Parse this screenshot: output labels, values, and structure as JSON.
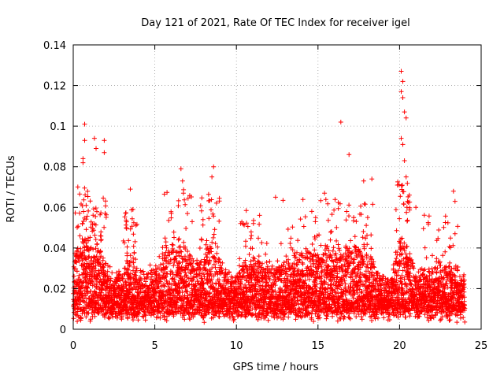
{
  "colors": {
    "marker": "#ff0000",
    "grid": "#a0a0a0",
    "axis": "#000000",
    "background": "#ffffff"
  },
  "chart_data": {
    "type": "scatter",
    "title": "Day 121 of 2021, Rate Of TEC Index for receiver igel",
    "xlabel": "GPS time / hours",
    "ylabel": "ROTI / TECUs",
    "xlim": [
      0,
      25
    ],
    "ylim": [
      0,
      0.14
    ],
    "x_ticks": [
      0,
      5,
      10,
      15,
      20,
      25
    ],
    "x_tick_labels": [
      "0",
      "5",
      "10",
      "15",
      "20",
      "25"
    ],
    "y_ticks": [
      0,
      0.02,
      0.04,
      0.06,
      0.08,
      0.1,
      0.12,
      0.14
    ],
    "y_tick_labels": [
      "0",
      "0.02",
      "0.04",
      "0.06",
      "0.08",
      "0.1",
      "0.12",
      "0.14"
    ],
    "grid": true,
    "marker": "+",
    "series": [
      {
        "name": "ROTI",
        "x_range": [
          0,
          24
        ],
        "notable_points": [
          {
            "x": 0.7,
            "y": 0.101
          },
          {
            "x": 0.7,
            "y": 0.093
          },
          {
            "x": 0.6,
            "y": 0.084
          },
          {
            "x": 0.6,
            "y": 0.082
          },
          {
            "x": 1.3,
            "y": 0.094
          },
          {
            "x": 1.4,
            "y": 0.089
          },
          {
            "x": 1.9,
            "y": 0.093
          },
          {
            "x": 1.9,
            "y": 0.087
          },
          {
            "x": 3.5,
            "y": 0.069
          },
          {
            "x": 6.6,
            "y": 0.079
          },
          {
            "x": 6.7,
            "y": 0.073
          },
          {
            "x": 8.6,
            "y": 0.08
          },
          {
            "x": 8.5,
            "y": 0.075
          },
          {
            "x": 12.4,
            "y": 0.065
          },
          {
            "x": 15.4,
            "y": 0.067
          },
          {
            "x": 16.4,
            "y": 0.102
          },
          {
            "x": 16.9,
            "y": 0.086
          },
          {
            "x": 17.8,
            "y": 0.073
          },
          {
            "x": 18.3,
            "y": 0.074
          },
          {
            "x": 20.1,
            "y": 0.127
          },
          {
            "x": 20.2,
            "y": 0.122
          },
          {
            "x": 20.1,
            "y": 0.117
          },
          {
            "x": 20.2,
            "y": 0.114
          },
          {
            "x": 20.3,
            "y": 0.107
          },
          {
            "x": 20.4,
            "y": 0.104
          },
          {
            "x": 20.1,
            "y": 0.094
          },
          {
            "x": 20.2,
            "y": 0.091
          },
          {
            "x": 20.3,
            "y": 0.083
          },
          {
            "x": 20.4,
            "y": 0.075
          },
          {
            "x": 20.6,
            "y": 0.066
          },
          {
            "x": 21.0,
            "y": 0.06
          },
          {
            "x": 23.3,
            "y": 0.068
          },
          {
            "x": 23.4,
            "y": 0.063
          },
          {
            "x": 23.4,
            "y": 0.047
          }
        ]
      }
    ]
  }
}
